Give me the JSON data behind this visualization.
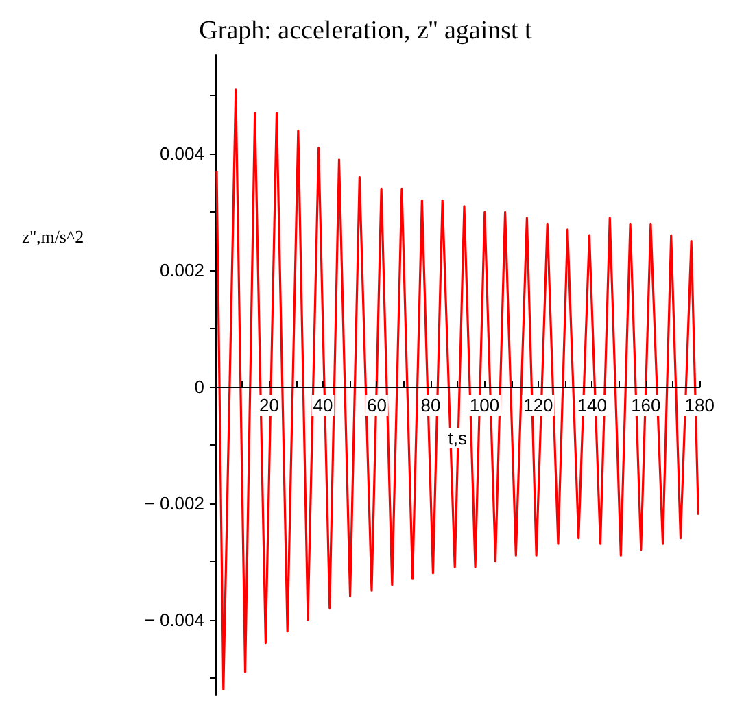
{
  "chart_data": {
    "type": "line",
    "title": "Graph: acceleration, z'' against t",
    "xlabel": "t,s",
    "ylabel": "z'',m/s^2",
    "x": [
      0.5,
      3.0,
      7.6,
      11.1,
      14.7,
      18.7,
      22.8,
      26.8,
      30.8,
      34.4,
      38.4,
      42.5,
      46.0,
      50.1,
      53.6,
      58.1,
      61.7,
      65.7,
      69.3,
      73.3,
      76.8,
      80.9,
      84.4,
      89.0,
      92.5,
      96.6,
      100.1,
      104.1,
      107.7,
      111.7,
      115.8,
      119.3,
      123.4,
      127.4,
      130.9,
      135.0,
      139.0,
      143.1,
      146.6,
      150.7,
      154.2,
      158.2,
      161.8,
      166.3,
      169.4,
      172.9,
      176.9,
      179.5
    ],
    "series": [
      {
        "color": "#ff0000",
        "values": [
          0.0037,
          -0.0052,
          0.0051,
          -0.0049,
          0.0047,
          -0.0044,
          0.0047,
          -0.0042,
          0.0044,
          -0.004,
          0.0041,
          -0.0038,
          0.0039,
          -0.0036,
          0.0036,
          -0.0035,
          0.0034,
          -0.0034,
          0.0034,
          -0.0033,
          0.0032,
          -0.0032,
          0.0032,
          -0.0031,
          0.0031,
          -0.0031,
          0.003,
          -0.003,
          0.003,
          -0.0029,
          0.0029,
          -0.0029,
          0.0028,
          -0.0027,
          0.0027,
          -0.0026,
          0.0026,
          -0.0027,
          0.0029,
          -0.0029,
          0.0028,
          -0.0028,
          0.0028,
          -0.0027,
          0.0026,
          -0.0026,
          0.0025,
          -0.0022
        ]
      }
    ],
    "xlim": [
      0,
      180
    ],
    "xticks": [
      {
        "value": 10,
        "label": null
      },
      20,
      {
        "value": 30,
        "label": null
      },
      40,
      {
        "value": 50,
        "label": null
      },
      60,
      {
        "value": 70,
        "label": null
      },
      80,
      {
        "value": 90,
        "label": null
      },
      100,
      {
        "value": 110,
        "label": null
      },
      120,
      {
        "value": 130,
        "label": null
      },
      140,
      {
        "value": 150,
        "label": null
      },
      160,
      {
        "value": 170,
        "label": null
      },
      180
    ],
    "ylim": [
      -0.0053,
      0.0057
    ],
    "yticks": [
      {
        "value": -0.005,
        "label": null
      },
      -0.004,
      {
        "value": -0.003,
        "label": null
      },
      -0.002,
      {
        "value": -0.001,
        "label": null
      },
      0,
      {
        "value": 0.001,
        "label": null
      },
      0.002,
      {
        "value": 0.003,
        "label": null
      },
      0.004,
      {
        "value": 0.005,
        "label": null
      }
    ],
    "marker": "none",
    "line_style": "solid"
  }
}
